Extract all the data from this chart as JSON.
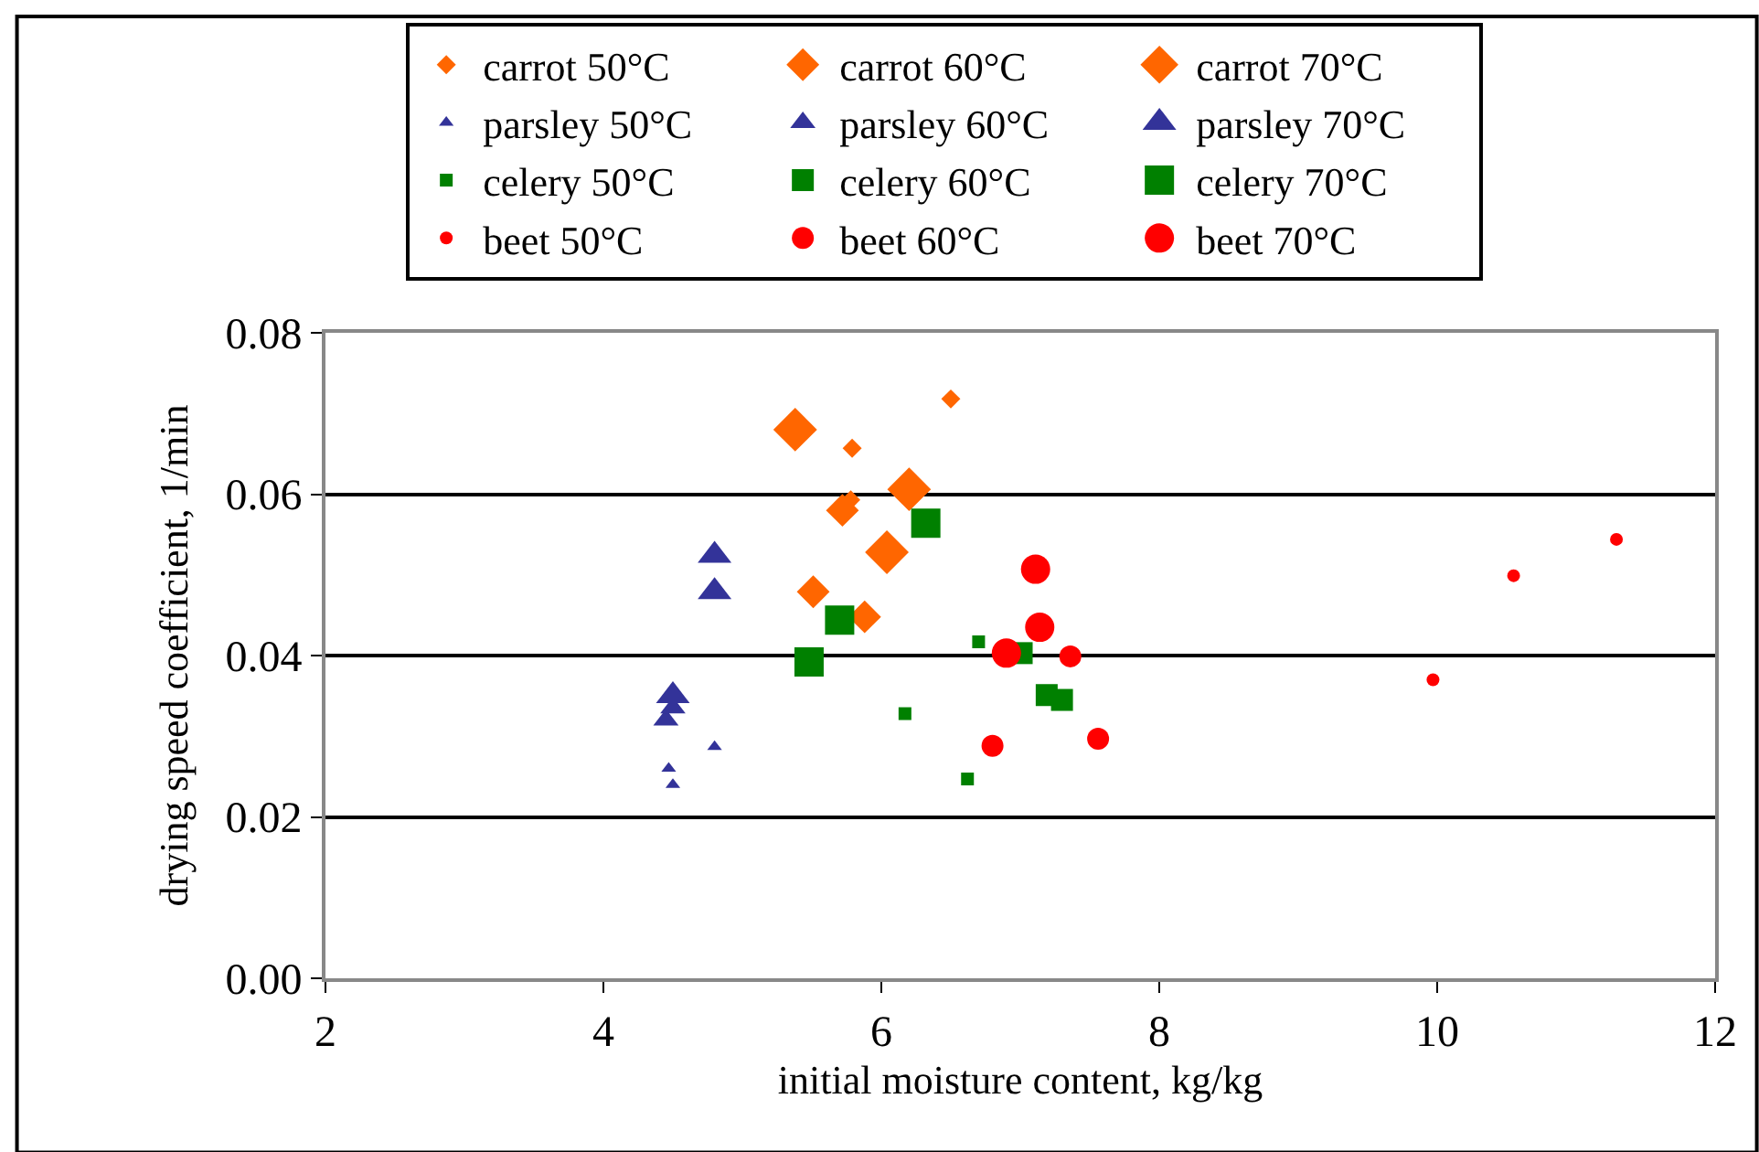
{
  "chart_data": {
    "type": "scatter",
    "xlabel": "initial moisture content, kg/kg",
    "ylabel": "drying speed coefficient, 1/min",
    "xlim": [
      2,
      12
    ],
    "xticks": [
      2,
      4,
      6,
      8,
      10,
      12
    ],
    "ylim": [
      0,
      0.08
    ],
    "yticks": [
      {
        "value": 0,
        "label": "0.00"
      },
      {
        "value": 0.02,
        "label": "0.02"
      },
      {
        "value": 0.04,
        "label": "0.04"
      },
      {
        "value": 0.06,
        "label": "0.06"
      },
      {
        "value": 0.08,
        "label": "0.08"
      }
    ],
    "grid": "y",
    "legend": "top",
    "series": [
      {
        "name": "carrot 50°C",
        "color": "#ff6600",
        "marker": "diamond",
        "x": [
          6.5,
          5.79,
          5.78
        ],
        "values": [
          0.0718,
          0.0657,
          0.0593
        ]
      },
      {
        "name": "carrot 60°C",
        "color": "#ff6600",
        "marker": "diamond",
        "x": [
          5.72,
          5.51,
          5.88
        ],
        "values": [
          0.058,
          0.0479,
          0.0448
        ]
      },
      {
        "name": "carrot 70°C",
        "color": "#ff6600",
        "marker": "diamond",
        "x": [
          5.38,
          6.2,
          6.04
        ],
        "values": [
          0.068,
          0.0606,
          0.0528
        ]
      },
      {
        "name": "parsley 50°C",
        "color": "#333399",
        "marker": "triangle",
        "x": [
          4.8,
          4.47,
          4.5
        ],
        "values": [
          0.0287,
          0.026,
          0.024
        ]
      },
      {
        "name": "parsley 60°C",
        "color": "#333399",
        "marker": "triangle",
        "x": [
          4.45,
          4.47,
          4.5
        ],
        "values": [
          0.032,
          null,
          0.0335
        ]
      },
      {
        "name": "parsley 70°C",
        "color": "#333399",
        "marker": "triangle",
        "x": [
          4.8,
          4.8,
          4.5
        ],
        "values": [
          0.0524,
          0.0479,
          0.035
        ]
      },
      {
        "name": "celery 50°C",
        "color": "#008000",
        "marker": "square",
        "x": [
          6.7,
          6.17,
          6.62
        ],
        "values": [
          0.0417,
          0.0328,
          0.0247
        ]
      },
      {
        "name": "celery 60°C",
        "color": "#008000",
        "marker": "square",
        "x": [
          7.19,
          7.3,
          7.01
        ],
        "values": [
          0.0351,
          0.0345,
          0.0403
        ]
      },
      {
        "name": "celery 70°C",
        "color": "#008000",
        "marker": "square",
        "x": [
          6.32,
          5.7,
          5.48
        ],
        "values": [
          0.0564,
          0.0444,
          0.0392
        ]
      },
      {
        "name": "beet 50°C",
        "color": "#ff0000",
        "marker": "circle",
        "x": [
          9.97,
          10.55,
          11.29
        ],
        "values": [
          0.037,
          0.0499,
          0.0544
        ]
      },
      {
        "name": "beet 60°C",
        "color": "#ff0000",
        "marker": "circle",
        "x": [
          7.36,
          6.8,
          7.56
        ],
        "values": [
          0.0399,
          0.0288,
          0.0297
        ]
      },
      {
        "name": "beet 70°C",
        "color": "#ff0000",
        "marker": "circle",
        "x": [
          7.11,
          7.14,
          6.9
        ],
        "values": [
          0.0507,
          0.0435,
          0.0403
        ]
      }
    ]
  }
}
